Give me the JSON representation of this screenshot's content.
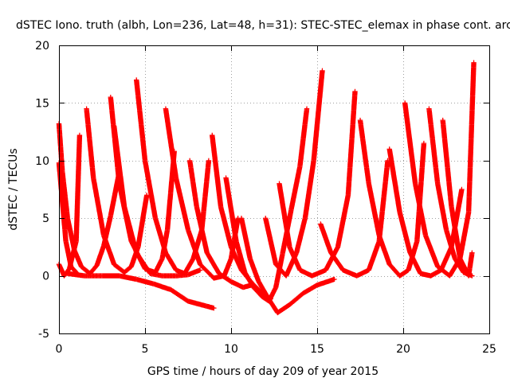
{
  "chart_data": {
    "type": "scatter",
    "title": "dSTEC Iono. truth (albh, Lon=236, Lat=48, h=31): STEC-STEC_elemax in phase cont. arcs",
    "xlabel": "GPS time / hours of day 209 of year 2015",
    "ylabel": "dSTEC  / TECUs",
    "xlim": [
      0,
      25
    ],
    "ylim": [
      -5,
      20
    ],
    "xticks": [
      0,
      5,
      10,
      15,
      20,
      25
    ],
    "yticks": [
      -5,
      0,
      5,
      10,
      15,
      20
    ],
    "grid": true,
    "marker": "+",
    "color": "#ff0000",
    "series": [
      {
        "arc": 1,
        "x": [
          0.0,
          0.2,
          0.5,
          0.9,
          1.3,
          1.8,
          2.2,
          2.6,
          3.0,
          3.5
        ],
        "y": [
          13.2,
          9.0,
          5.0,
          2.2,
          0.8,
          0.2,
          0.9,
          2.6,
          5.2,
          9.0
        ]
      },
      {
        "arc": 2,
        "x": [
          0.0,
          0.3,
          0.6,
          1.0,
          1.2
        ],
        "y": [
          1.0,
          0.0,
          0.6,
          3.0,
          12.2
        ]
      },
      {
        "arc": 3,
        "x": [
          0.0,
          0.4,
          0.7,
          1.0
        ],
        "y": [
          9.8,
          3.0,
          0.8,
          0.3
        ]
      },
      {
        "arc": 4,
        "x": [
          1.6,
          2.0,
          2.6,
          3.2,
          3.8,
          4.2,
          4.6,
          5.1
        ],
        "y": [
          14.5,
          8.5,
          3.5,
          1.0,
          0.3,
          0.8,
          2.5,
          7.0
        ]
      },
      {
        "arc": 5,
        "x": [
          0.5,
          1.5,
          2.5,
          3.5,
          4.5,
          5.5,
          6.5,
          7.5,
          8.5,
          9.0
        ],
        "y": [
          0.2,
          0.0,
          0.0,
          0.0,
          -0.3,
          -0.7,
          -1.2,
          -2.2,
          -2.6,
          -2.8
        ]
      },
      {
        "arc": 6,
        "x": [
          3.0,
          3.5,
          4.2,
          5.0,
          5.6,
          6.0,
          6.3,
          6.7
        ],
        "y": [
          15.5,
          8.0,
          3.0,
          0.6,
          0.3,
          1.5,
          4.0,
          10.8
        ]
      },
      {
        "arc": 7,
        "x": [
          3.2,
          3.8,
          4.5,
          5.3,
          6.0,
          6.8,
          7.5,
          8.2
        ],
        "y": [
          13.0,
          6.0,
          2.0,
          0.2,
          0.0,
          0.0,
          0.1,
          0.5
        ]
      },
      {
        "arc": 8,
        "x": [
          4.5,
          5.0,
          5.6,
          6.2,
          6.8,
          7.3,
          7.8,
          8.3,
          8.7
        ],
        "y": [
          17.0,
          10.0,
          5.0,
          2.0,
          0.5,
          0.2,
          1.5,
          4.0,
          10.0
        ]
      },
      {
        "arc": 9,
        "x": [
          6.2,
          6.8,
          7.5,
          8.2,
          9.0,
          9.6,
          10.0,
          10.4
        ],
        "y": [
          14.5,
          8.5,
          4.0,
          1.0,
          -0.2,
          0.0,
          1.5,
          5.0
        ]
      },
      {
        "arc": 10,
        "x": [
          7.6,
          8.0,
          8.6,
          9.3,
          10.0,
          10.7,
          11.2
        ],
        "y": [
          10.0,
          6.0,
          2.0,
          0.2,
          -0.5,
          -1.0,
          -0.8
        ]
      },
      {
        "arc": 11,
        "x": [
          8.9,
          9.4,
          10.0,
          10.6,
          11.2,
          11.8,
          12.3
        ],
        "y": [
          12.2,
          6.0,
          2.5,
          0.5,
          -0.6,
          -1.5,
          -2.0
        ]
      },
      {
        "arc": 12,
        "x": [
          9.7,
          10.3,
          10.8,
          11.3,
          11.8,
          12.2,
          12.6,
          13.0,
          13.5,
          14.0,
          14.4
        ],
        "y": [
          8.5,
          3.0,
          0.3,
          -1.0,
          -1.8,
          -2.2,
          -1.0,
          2.0,
          5.8,
          9.5,
          14.5
        ]
      },
      {
        "arc": 13,
        "x": [
          10.6,
          11.1,
          11.6,
          12.1,
          12.7,
          13.4,
          14.2,
          15.0,
          16.0
        ],
        "y": [
          5.0,
          1.5,
          -0.5,
          -1.8,
          -3.2,
          -2.5,
          -1.5,
          -0.8,
          -0.3
        ]
      },
      {
        "arc": 14,
        "x": [
          12.0,
          12.6,
          13.2,
          13.8,
          14.3,
          14.8,
          15.3
        ],
        "y": [
          5.0,
          1.0,
          0.0,
          2.0,
          5.0,
          10.0,
          17.8
        ]
      },
      {
        "arc": 15,
        "x": [
          12.8,
          13.4,
          14.0,
          14.7,
          15.5,
          16.2,
          16.8,
          17.2
        ],
        "y": [
          8.0,
          2.5,
          0.5,
          0.0,
          0.5,
          2.5,
          7.0,
          16.0
        ]
      },
      {
        "arc": 16,
        "x": [
          15.2,
          15.8,
          16.5,
          17.3,
          18.0,
          18.6,
          19.1
        ],
        "y": [
          4.5,
          2.0,
          0.5,
          0.0,
          0.5,
          3.0,
          10.0
        ]
      },
      {
        "arc": 17,
        "x": [
          17.5,
          18.0,
          18.6,
          19.2,
          19.8,
          20.3,
          20.8,
          21.2
        ],
        "y": [
          13.5,
          8.0,
          3.5,
          1.0,
          0.0,
          0.5,
          3.0,
          11.5
        ]
      },
      {
        "arc": 18,
        "x": [
          19.2,
          19.8,
          20.4,
          21.0,
          21.6,
          22.2,
          22.8,
          23.4
        ],
        "y": [
          11.0,
          5.5,
          2.0,
          0.2,
          0.0,
          0.5,
          2.5,
          7.5
        ]
      },
      {
        "arc": 19,
        "x": [
          20.1,
          20.7,
          21.3,
          22.0,
          22.7,
          23.3,
          23.8,
          24.1
        ],
        "y": [
          15.0,
          8.0,
          3.5,
          0.8,
          0.0,
          1.5,
          5.5,
          18.5
        ]
      },
      {
        "arc": 20,
        "x": [
          21.5,
          22.0,
          22.5,
          23.0,
          23.5,
          24.0
        ],
        "y": [
          14.5,
          8.0,
          4.0,
          1.5,
          0.3,
          0.0
        ]
      },
      {
        "arc": 21,
        "x": [
          22.3,
          22.8,
          23.3,
          23.8,
          24.0
        ],
        "y": [
          13.5,
          6.0,
          1.5,
          0.0,
          2.0
        ]
      }
    ]
  }
}
